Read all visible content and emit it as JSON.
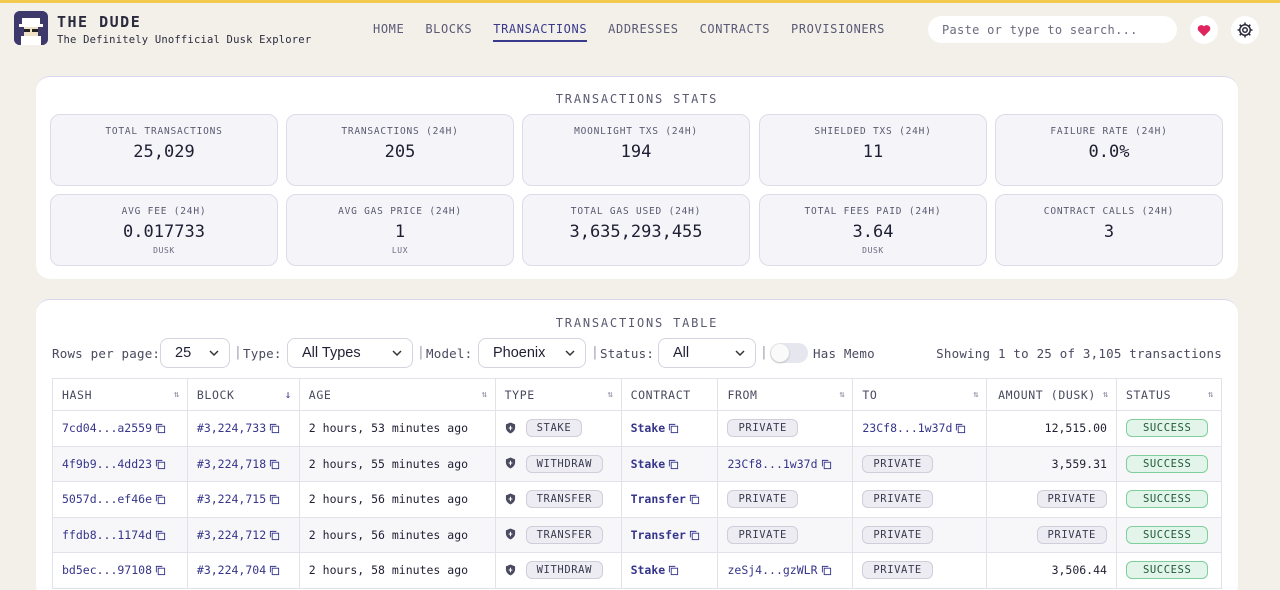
{
  "brand": {
    "title": "THE DUDE",
    "subtitle": "The Definitely Unofficial Dusk Explorer"
  },
  "nav": [
    {
      "label": "HOME",
      "active": false
    },
    {
      "label": "BLOCKS",
      "active": false
    },
    {
      "label": "TRANSACTIONS",
      "active": true
    },
    {
      "label": "ADDRESSES",
      "active": false
    },
    {
      "label": "CONTRACTS",
      "active": false
    },
    {
      "label": "PROVISIONERS",
      "active": false
    }
  ],
  "search": {
    "placeholder": "Paste or type to search..."
  },
  "colors": {
    "accent": "#3a3a8c",
    "heart": "#e0245e",
    "success": "#7fcf9c",
    "topline": "#f2c94c"
  },
  "stats": {
    "title": "TRANSACTIONS STATS",
    "items": [
      {
        "label": "TOTAL TRANSACTIONS",
        "value": "25,029",
        "unit": ""
      },
      {
        "label": "TRANSACTIONS (24H)",
        "value": "205",
        "unit": ""
      },
      {
        "label": "MOONLIGHT TXS (24H)",
        "value": "194",
        "unit": ""
      },
      {
        "label": "SHIELDED TXS (24H)",
        "value": "11",
        "unit": ""
      },
      {
        "label": "FAILURE RATE (24H)",
        "value": "0.0%",
        "unit": ""
      },
      {
        "label": "AVG FEE (24H)",
        "value": "0.017733",
        "unit": "DUSK"
      },
      {
        "label": "AVG GAS PRICE (24H)",
        "value": "1",
        "unit": "LUX"
      },
      {
        "label": "TOTAL GAS USED (24H)",
        "value": "3,635,293,455",
        "unit": ""
      },
      {
        "label": "TOTAL FEES PAID (24H)",
        "value": "3.64",
        "unit": "DUSK"
      },
      {
        "label": "CONTRACT CALLS (24H)",
        "value": "3",
        "unit": ""
      }
    ]
  },
  "table": {
    "title": "TRANSACTIONS TABLE",
    "controls": {
      "rows_label": "Rows per page:",
      "rows_value": "25",
      "type_label": "Type:",
      "type_value": "All Types",
      "model_label": "Model:",
      "model_value": "Phoenix",
      "status_label": "Status:",
      "status_value": "All",
      "memo_label": "Has Memo",
      "showing": "Showing 1 to 25 of 3,105 transactions"
    },
    "columns": [
      "HASH",
      "BLOCK",
      "AGE",
      "TYPE",
      "CONTRACT",
      "FROM",
      "TO",
      "AMOUNT (DUSK)",
      "STATUS"
    ],
    "rows": [
      {
        "hash": "7cd04...a2559",
        "block": "#3,224,733",
        "age": "2 hours, 53 minutes ago",
        "type": "STAKE",
        "contract": "Stake",
        "from": "PRIVATE",
        "from_private": true,
        "to": "23Cf8...1w37d",
        "to_private": false,
        "amount": "12,515.00",
        "amount_private": false,
        "status": "SUCCESS"
      },
      {
        "hash": "4f9b9...4dd23",
        "block": "#3,224,718",
        "age": "2 hours, 55 minutes ago",
        "type": "WITHDRAW",
        "contract": "Stake",
        "from": "23Cf8...1w37d",
        "from_private": false,
        "to": "PRIVATE",
        "to_private": true,
        "amount": "3,559.31",
        "amount_private": false,
        "status": "SUCCESS"
      },
      {
        "hash": "5057d...ef46e",
        "block": "#3,224,715",
        "age": "2 hours, 56 minutes ago",
        "type": "TRANSFER",
        "contract": "Transfer",
        "from": "PRIVATE",
        "from_private": true,
        "to": "PRIVATE",
        "to_private": true,
        "amount": "PRIVATE",
        "amount_private": true,
        "status": "SUCCESS"
      },
      {
        "hash": "ffdb8...1174d",
        "block": "#3,224,712",
        "age": "2 hours, 56 minutes ago",
        "type": "TRANSFER",
        "contract": "Transfer",
        "from": "PRIVATE",
        "from_private": true,
        "to": "PRIVATE",
        "to_private": true,
        "amount": "PRIVATE",
        "amount_private": true,
        "status": "SUCCESS"
      },
      {
        "hash": "bd5ec...97108",
        "block": "#3,224,704",
        "age": "2 hours, 58 minutes ago",
        "type": "WITHDRAW",
        "contract": "Stake",
        "from": "zeSj4...gzWLR",
        "from_private": false,
        "to": "PRIVATE",
        "to_private": true,
        "amount": "3,506.44",
        "amount_private": false,
        "status": "SUCCESS"
      }
    ]
  }
}
